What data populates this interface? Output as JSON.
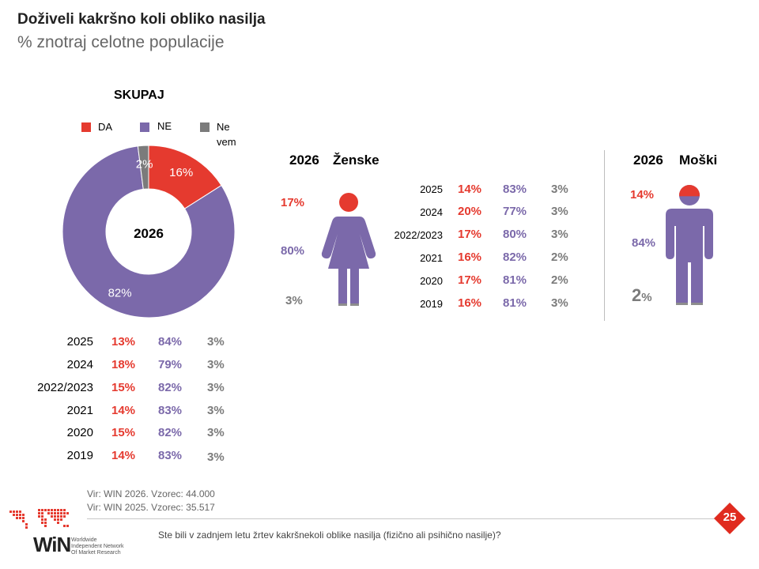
{
  "title": "Doživeli kakršno koli obliko nasilja",
  "subtitle": "% znotraj celotne populacije",
  "chart_data": [
    {
      "type": "pie",
      "title": "SKUPAJ",
      "center_label": "2026",
      "legend": [
        {
          "label": "DA",
          "color": "#e53a2f"
        },
        {
          "label": "NE",
          "color": "#7b69aa"
        },
        {
          "label": "Ne vem",
          "color": "#7b7b7b"
        }
      ],
      "slices": [
        {
          "label": "DA",
          "value": 16,
          "text": "16%",
          "color": "#e53a2f"
        },
        {
          "label": "NE",
          "value": 82,
          "text": "82%",
          "color": "#7b69aa"
        },
        {
          "label": "Ne vem",
          "value": 2,
          "text": "2%",
          "color": "#7b7b7b"
        }
      ]
    },
    {
      "type": "table",
      "title": "SKUPAJ",
      "rows": [
        {
          "year": "2025",
          "da": "13%",
          "ne": "84%",
          "nevem": "3%"
        },
        {
          "year": "2024",
          "da": "18%",
          "ne": "79%",
          "nevem": "3%"
        },
        {
          "year": "2022/2023",
          "da": "15%",
          "ne": "82%",
          "nevem": "3%"
        },
        {
          "year": "2021",
          "da": "14%",
          "ne": "83%",
          "nevem": "3%"
        },
        {
          "year": "2020",
          "da": "15%",
          "ne": "82%",
          "nevem": "3%"
        },
        {
          "year": "2019",
          "da": "14%",
          "ne": "83%",
          "nevem": "3%"
        }
      ]
    },
    {
      "type": "table",
      "title": "Ženske",
      "year": "2026",
      "current": {
        "da": "17%",
        "ne": "80%",
        "nevem": "3%",
        "da_value": 17
      },
      "rows": [
        {
          "year": "2025",
          "da": "14%",
          "ne": "83%",
          "nevem": "3%"
        },
        {
          "year": "2024",
          "da": "20%",
          "ne": "77%",
          "nevem": "3%"
        },
        {
          "year": "2022/2023",
          "da": "17%",
          "ne": "80%",
          "nevem": "3%"
        },
        {
          "year": "2021",
          "da": "16%",
          "ne": "82%",
          "nevem": "2%"
        },
        {
          "year": "2020",
          "da": "17%",
          "ne": "81%",
          "nevem": "2%"
        },
        {
          "year": "2019",
          "da": "16%",
          "ne": "81%",
          "nevem": "3%"
        }
      ]
    },
    {
      "type": "table",
      "title": "Moški",
      "year": "2026",
      "current": {
        "da": "14%",
        "ne": "84%",
        "nevem_num": "2",
        "nevem_pct": "%",
        "da_value": 14
      }
    }
  ],
  "colors": {
    "da": "#e53a2f",
    "ne": "#7b69aa",
    "nevem": "#7b7b7b"
  },
  "footer": {
    "source_1": "Vir: WIN 2026.  Vzorec: 44.000",
    "source_2": "Vir: WIN 2025.  Vzorec: 35.517",
    "question": "Ste bili v zadnjem letu žrtev kakršnekoli oblike nasilja (fizično ali psihično nasilje)?",
    "page_number": "25",
    "logo_text": "WiN",
    "logo_tagline_1": "Worldwide",
    "logo_tagline_2": "Independent Network",
    "logo_tagline_3": "Of Market Research"
  }
}
